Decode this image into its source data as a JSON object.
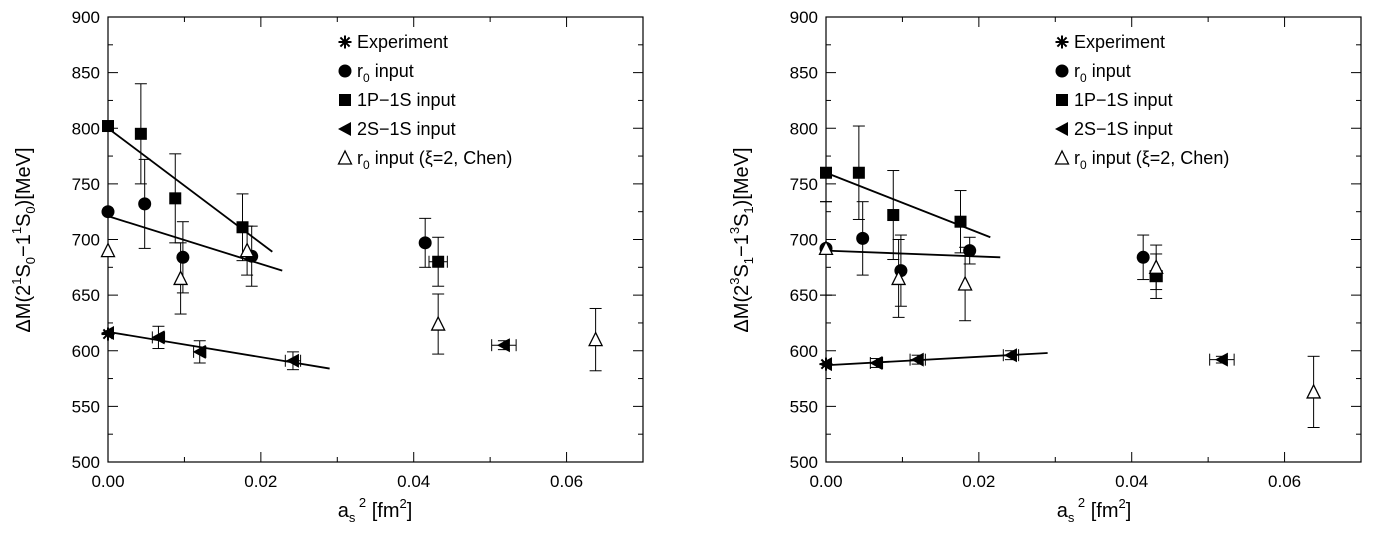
{
  "chart_data": [
    {
      "type": "scatter",
      "xlabel": {
        "base": "a",
        "sub": "s",
        "sup": "2",
        "rest": " [fm",
        "sup2": "2",
        "end": "]"
      },
      "ylabel": {
        "p1": "ΔM(2",
        "sup1": "1",
        "p2": "S",
        "sub1": "0",
        "p3": "−1",
        "sup2": "1",
        "p4": "S",
        "sub2": "0",
        "p5": ")[MeV]"
      },
      "xlim": [
        0,
        0.07
      ],
      "ylim": [
        500,
        900
      ],
      "xticks": [
        "0.00",
        "0.02",
        "0.04",
        "0.06"
      ],
      "xtick_values": [
        0,
        0.02,
        0.04,
        0.06
      ],
      "yticks": [
        "500",
        "550",
        "600",
        "650",
        "700",
        "750",
        "800",
        "850",
        "900"
      ],
      "ytick_values": [
        500,
        550,
        600,
        650,
        700,
        750,
        800,
        850,
        900
      ],
      "legend_position": "top-right",
      "series": [
        {
          "name": "Experiment",
          "marker": "asterisk",
          "points": [
            {
              "x": 0.0,
              "y": 615,
              "yerr": 0,
              "xerr": 0
            }
          ]
        },
        {
          "name": "r0 input",
          "label_main": "r",
          "label_sub": "0",
          "label_rest": " input",
          "marker": "circle",
          "points": [
            {
              "x": 0.0,
              "y": 725,
              "yerr": 0,
              "xerr": 0
            },
            {
              "x": 0.0048,
              "y": 732,
              "yerr": 40,
              "xerr": 0
            },
            {
              "x": 0.0098,
              "y": 684,
              "yerr": 32,
              "xerr": 0
            },
            {
              "x": 0.0188,
              "y": 685,
              "yerr": 27,
              "xerr": 0
            },
            {
              "x": 0.0415,
              "y": 697,
              "yerr": 22,
              "xerr": 0
            }
          ]
        },
        {
          "name": "1P−1S input",
          "marker": "square",
          "points": [
            {
              "x": 0.0,
              "y": 802,
              "yerr": 0,
              "xerr": 0
            },
            {
              "x": 0.0043,
              "y": 795,
              "yerr": 45,
              "xerr": 0
            },
            {
              "x": 0.0088,
              "y": 737,
              "yerr": 40,
              "xerr": 0
            },
            {
              "x": 0.0176,
              "y": 711,
              "yerr": 30,
              "xerr": 0
            },
            {
              "x": 0.0432,
              "y": 680,
              "yerr": 22,
              "xerr": 0.0012
            }
          ]
        },
        {
          "name": "2S−1S input",
          "marker": "left-triangle",
          "points": [
            {
              "x": 0.0,
              "y": 616,
              "yerr": 0,
              "xerr": 0
            },
            {
              "x": 0.0066,
              "y": 612,
              "yerr": 10,
              "xerr": 0.0008
            },
            {
              "x": 0.012,
              "y": 599,
              "yerr": 10,
              "xerr": 0.0008
            },
            {
              "x": 0.0242,
              "y": 591,
              "yerr": 8,
              "xerr": 0.001
            },
            {
              "x": 0.0518,
              "y": 605,
              "yerr": 4,
              "xerr": 0.0016
            }
          ]
        },
        {
          "name": "r0 input (ξ=2, Chen)",
          "label_main": "r",
          "label_sub": "0",
          "label_rest": " input (ξ=2, Chen)",
          "marker": "open-triangle",
          "points": [
            {
              "x": 0.0,
              "y": 690,
              "yerr": 0,
              "xerr": 0
            },
            {
              "x": 0.0095,
              "y": 665,
              "yerr": 32,
              "xerr": 0
            },
            {
              "x": 0.0182,
              "y": 690,
              "yerr": 22,
              "xerr": 0
            },
            {
              "x": 0.0432,
              "y": 624,
              "yerr": 27,
              "xerr": 0
            },
            {
              "x": 0.0638,
              "y": 610,
              "yerr": 28,
              "xerr": 0
            }
          ]
        }
      ],
      "fit_lines": [
        {
          "series": "1P−1S input",
          "from": [
            0.0,
            800
          ],
          "to": [
            0.0215,
            689
          ]
        },
        {
          "series": "r0 input",
          "from": [
            0.0,
            721
          ],
          "to": [
            0.0228,
            672
          ]
        },
        {
          "series": "2S−1S input",
          "from": [
            0.0,
            617
          ],
          "to": [
            0.029,
            584
          ]
        }
      ]
    },
    {
      "type": "scatter",
      "xlabel": {
        "base": "a",
        "sub": "s",
        "sup": "2",
        "rest": " [fm",
        "sup2": "2",
        "end": "]"
      },
      "ylabel": {
        "p1": "ΔM(2",
        "sup1": "3",
        "p2": "S",
        "sub1": "1",
        "p3": "−1",
        "sup2": "3",
        "p4": "S",
        "sub2": "1",
        "p5": ")[MeV]"
      },
      "xlim": [
        0,
        0.07
      ],
      "ylim": [
        500,
        900
      ],
      "xticks": [
        "0.00",
        "0.02",
        "0.04",
        "0.06"
      ],
      "xtick_values": [
        0,
        0.02,
        0.04,
        0.06
      ],
      "yticks": [
        "500",
        "550",
        "600",
        "650",
        "700",
        "750",
        "800",
        "850",
        "900"
      ],
      "ytick_values": [
        500,
        550,
        600,
        650,
        700,
        750,
        800,
        850,
        900
      ],
      "legend_position": "top-right",
      "series": [
        {
          "name": "Experiment",
          "marker": "asterisk",
          "points": [
            {
              "x": 0.0,
              "y": 588,
              "yerr": 0,
              "xerr": 0
            }
          ]
        },
        {
          "name": "r0 input",
          "label_main": "r",
          "label_sub": "0",
          "label_rest": " input",
          "marker": "circle",
          "points": [
            {
              "x": 0.0,
              "y": 692,
              "yerr": 42,
              "xerr": 0
            },
            {
              "x": 0.0048,
              "y": 701,
              "yerr": 33,
              "xerr": 0
            },
            {
              "x": 0.0098,
              "y": 672,
              "yerr": 32,
              "xerr": 0
            },
            {
              "x": 0.0188,
              "y": 690,
              "yerr": 12,
              "xerr": 0
            },
            {
              "x": 0.0415,
              "y": 684,
              "yerr": 20,
              "xerr": 0
            }
          ]
        },
        {
          "name": "1P−1S input",
          "marker": "square",
          "points": [
            {
              "x": 0.0,
              "y": 760,
              "yerr": 0,
              "xerr": 0
            },
            {
              "x": 0.0043,
              "y": 760,
              "yerr": 42,
              "xerr": 0
            },
            {
              "x": 0.0088,
              "y": 722,
              "yerr": 40,
              "xerr": 0
            },
            {
              "x": 0.0176,
              "y": 716,
              "yerr": 28,
              "xerr": 0
            },
            {
              "x": 0.0432,
              "y": 667,
              "yerr": 20,
              "xerr": 0.0008
            }
          ]
        },
        {
          "name": "2S−1S input",
          "marker": "left-triangle",
          "points": [
            {
              "x": 0.0,
              "y": 588,
              "yerr": 0,
              "xerr": 0
            },
            {
              "x": 0.0066,
              "y": 589,
              "yerr": 4,
              "xerr": 0.0008
            },
            {
              "x": 0.012,
              "y": 592,
              "yerr": 4,
              "xerr": 0.001
            },
            {
              "x": 0.0242,
              "y": 596,
              "yerr": 4,
              "xerr": 0.001
            },
            {
              "x": 0.0518,
              "y": 592,
              "yerr": 3,
              "xerr": 0.0016
            }
          ]
        },
        {
          "name": "r0 input (ξ=2, Chen)",
          "label_main": "r",
          "label_sub": "0",
          "label_rest": " input (ξ=2, Chen)",
          "marker": "open-triangle",
          "points": [
            {
              "x": 0.0,
              "y": 692,
              "yerr": 42,
              "xerr": 0
            },
            {
              "x": 0.0095,
              "y": 665,
              "yerr": 35,
              "xerr": 0
            },
            {
              "x": 0.0182,
              "y": 660,
              "yerr": 33,
              "xerr": 0
            },
            {
              "x": 0.0432,
              "y": 675,
              "yerr": 20,
              "xerr": 0
            },
            {
              "x": 0.0638,
              "y": 563,
              "yerr": 32,
              "xerr": 0
            }
          ]
        }
      ],
      "fit_lines": [
        {
          "series": "1P−1S input",
          "from": [
            0.0,
            760
          ],
          "to": [
            0.0215,
            702
          ]
        },
        {
          "series": "r0 input",
          "from": [
            0.0,
            690
          ],
          "to": [
            0.0228,
            684
          ]
        },
        {
          "series": "2S−1S input",
          "from": [
            0.0,
            587
          ],
          "to": [
            0.029,
            598
          ]
        }
      ]
    }
  ]
}
